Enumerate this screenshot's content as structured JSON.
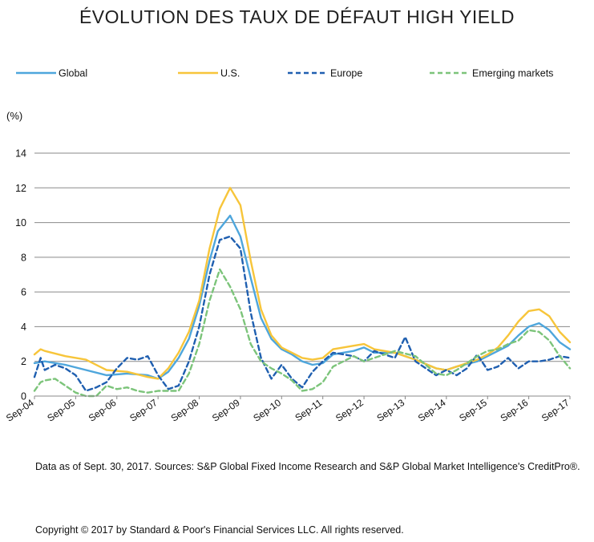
{
  "title": "ÉVOLUTION DES TAUX DE DÉFAUT HIGH YIELD",
  "footnote": "Data as of Sept. 30, 2017. Sources: S&P Global Fixed Income Research and S&P Global Market Intelligence's CreditPro®.",
  "copyright": "Copyright © 2017 by Standard & Poor's Financial Services LLC. All rights reserved.",
  "chart_data": {
    "type": "line",
    "ylabel": "(%)",
    "ylim": [
      0,
      14
    ],
    "yticks": [
      0,
      2,
      4,
      6,
      8,
      10,
      12,
      14
    ],
    "xticks": [
      "Sep-04",
      "Sep-05",
      "Sep-06",
      "Sep-07",
      "Sep-08",
      "Sep-09",
      "Sep-10",
      "Sep-11",
      "Sep-12",
      "Sep-13",
      "Sep-14",
      "Sep-15",
      "Sep-16",
      "Sep-17"
    ],
    "xlim": [
      2004.75,
      2017.75
    ],
    "grid": "horizontal",
    "legend_position": "top",
    "series": [
      {
        "name": "Global",
        "color": "#4ea6dc",
        "dash": "solid",
        "points": [
          [
            2004.75,
            1.9
          ],
          [
            2005.0,
            2.0
          ],
          [
            2005.5,
            1.8
          ],
          [
            2006.0,
            1.5
          ],
          [
            2006.5,
            1.2
          ],
          [
            2007.0,
            1.3
          ],
          [
            2007.5,
            1.2
          ],
          [
            2007.75,
            1.0
          ],
          [
            2008.0,
            1.4
          ],
          [
            2008.25,
            2.2
          ],
          [
            2008.5,
            3.3
          ],
          [
            2008.75,
            5.2
          ],
          [
            2009.0,
            7.8
          ],
          [
            2009.2,
            9.5
          ],
          [
            2009.5,
            10.4
          ],
          [
            2009.75,
            9.2
          ],
          [
            2010.0,
            6.8
          ],
          [
            2010.25,
            4.5
          ],
          [
            2010.5,
            3.3
          ],
          [
            2010.75,
            2.7
          ],
          [
            2011.0,
            2.4
          ],
          [
            2011.25,
            2.0
          ],
          [
            2011.5,
            1.8
          ],
          [
            2011.75,
            1.9
          ],
          [
            2012.0,
            2.4
          ],
          [
            2012.5,
            2.6
          ],
          [
            2012.75,
            2.8
          ],
          [
            2013.0,
            2.5
          ],
          [
            2013.5,
            2.5
          ],
          [
            2014.0,
            2.1
          ],
          [
            2014.5,
            1.6
          ],
          [
            2014.75,
            1.5
          ],
          [
            2015.0,
            1.7
          ],
          [
            2015.5,
            2.0
          ],
          [
            2015.75,
            2.3
          ],
          [
            2016.0,
            2.6
          ],
          [
            2016.25,
            2.9
          ],
          [
            2016.5,
            3.5
          ],
          [
            2016.75,
            4.0
          ],
          [
            2017.0,
            4.2
          ],
          [
            2017.25,
            3.8
          ],
          [
            2017.5,
            3.1
          ],
          [
            2017.75,
            2.7
          ]
        ]
      },
      {
        "name": "U.S.",
        "color": "#f7c53a",
        "dash": "solid",
        "points": [
          [
            2004.75,
            2.4
          ],
          [
            2004.9,
            2.7
          ],
          [
            2005.0,
            2.6
          ],
          [
            2005.5,
            2.3
          ],
          [
            2006.0,
            2.1
          ],
          [
            2006.5,
            1.5
          ],
          [
            2007.0,
            1.4
          ],
          [
            2007.5,
            1.1
          ],
          [
            2007.75,
            1.0
          ],
          [
            2008.0,
            1.6
          ],
          [
            2008.25,
            2.5
          ],
          [
            2008.5,
            3.7
          ],
          [
            2008.75,
            5.5
          ],
          [
            2009.0,
            8.5
          ],
          [
            2009.25,
            10.8
          ],
          [
            2009.5,
            12.0
          ],
          [
            2009.75,
            11.0
          ],
          [
            2010.0,
            7.8
          ],
          [
            2010.25,
            5.0
          ],
          [
            2010.5,
            3.5
          ],
          [
            2010.75,
            2.8
          ],
          [
            2011.0,
            2.5
          ],
          [
            2011.25,
            2.2
          ],
          [
            2011.5,
            2.1
          ],
          [
            2011.75,
            2.2
          ],
          [
            2012.0,
            2.7
          ],
          [
            2012.5,
            2.9
          ],
          [
            2012.75,
            3.0
          ],
          [
            2013.0,
            2.7
          ],
          [
            2013.5,
            2.5
          ],
          [
            2014.0,
            2.1
          ],
          [
            2014.5,
            1.6
          ],
          [
            2014.75,
            1.5
          ],
          [
            2015.0,
            1.7
          ],
          [
            2015.5,
            2.1
          ],
          [
            2015.75,
            2.4
          ],
          [
            2016.0,
            2.8
          ],
          [
            2016.25,
            3.5
          ],
          [
            2016.5,
            4.3
          ],
          [
            2016.75,
            4.9
          ],
          [
            2017.0,
            5.0
          ],
          [
            2017.25,
            4.6
          ],
          [
            2017.5,
            3.7
          ],
          [
            2017.75,
            3.1
          ]
        ]
      },
      {
        "name": "Europe",
        "color": "#1f5fb0",
        "dash": "dashed",
        "points": [
          [
            2004.75,
            1.1
          ],
          [
            2004.9,
            2.2
          ],
          [
            2005.0,
            1.5
          ],
          [
            2005.25,
            1.8
          ],
          [
            2005.5,
            1.6
          ],
          [
            2005.75,
            1.2
          ],
          [
            2006.0,
            0.3
          ],
          [
            2006.25,
            0.5
          ],
          [
            2006.5,
            0.8
          ],
          [
            2006.75,
            1.6
          ],
          [
            2007.0,
            2.2
          ],
          [
            2007.25,
            2.1
          ],
          [
            2007.5,
            2.3
          ],
          [
            2007.75,
            1.2
          ],
          [
            2008.0,
            0.4
          ],
          [
            2008.25,
            0.6
          ],
          [
            2008.5,
            2.0
          ],
          [
            2008.75,
            4.0
          ],
          [
            2009.0,
            7.0
          ],
          [
            2009.25,
            9.0
          ],
          [
            2009.5,
            9.2
          ],
          [
            2009.75,
            8.5
          ],
          [
            2010.0,
            4.8
          ],
          [
            2010.25,
            2.2
          ],
          [
            2010.5,
            1.0
          ],
          [
            2010.75,
            1.8
          ],
          [
            2011.0,
            1.0
          ],
          [
            2011.25,
            0.5
          ],
          [
            2011.5,
            1.4
          ],
          [
            2011.75,
            2.0
          ],
          [
            2012.0,
            2.5
          ],
          [
            2012.5,
            2.3
          ],
          [
            2012.75,
            2.0
          ],
          [
            2013.0,
            2.6
          ],
          [
            2013.5,
            2.2
          ],
          [
            2013.75,
            3.4
          ],
          [
            2014.0,
            2.0
          ],
          [
            2014.5,
            1.2
          ],
          [
            2014.75,
            1.5
          ],
          [
            2015.0,
            1.2
          ],
          [
            2015.25,
            1.6
          ],
          [
            2015.5,
            2.4
          ],
          [
            2015.75,
            1.5
          ],
          [
            2016.0,
            1.7
          ],
          [
            2016.25,
            2.2
          ],
          [
            2016.5,
            1.6
          ],
          [
            2016.75,
            2.0
          ],
          [
            2017.0,
            2.0
          ],
          [
            2017.25,
            2.1
          ],
          [
            2017.5,
            2.3
          ],
          [
            2017.75,
            2.2
          ]
        ]
      },
      {
        "name": "Emerging markets",
        "color": "#7cc47a",
        "dash": "dashed",
        "points": [
          [
            2004.75,
            0.3
          ],
          [
            2004.9,
            0.8
          ],
          [
            2005.0,
            0.9
          ],
          [
            2005.25,
            1.0
          ],
          [
            2005.5,
            0.6
          ],
          [
            2005.75,
            0.2
          ],
          [
            2006.0,
            0.0
          ],
          [
            2006.25,
            0.0
          ],
          [
            2006.5,
            0.6
          ],
          [
            2006.75,
            0.4
          ],
          [
            2007.0,
            0.5
          ],
          [
            2007.25,
            0.3
          ],
          [
            2007.5,
            0.2
          ],
          [
            2007.75,
            0.3
          ],
          [
            2008.0,
            0.3
          ],
          [
            2008.25,
            0.3
          ],
          [
            2008.5,
            1.3
          ],
          [
            2008.75,
            3.0
          ],
          [
            2009.0,
            5.5
          ],
          [
            2009.25,
            7.3
          ],
          [
            2009.5,
            6.3
          ],
          [
            2009.75,
            5.0
          ],
          [
            2010.0,
            3.0
          ],
          [
            2010.25,
            2.0
          ],
          [
            2010.5,
            1.6
          ],
          [
            2010.75,
            1.3
          ],
          [
            2011.0,
            0.9
          ],
          [
            2011.25,
            0.3
          ],
          [
            2011.5,
            0.4
          ],
          [
            2011.75,
            0.8
          ],
          [
            2012.0,
            1.7
          ],
          [
            2012.5,
            2.3
          ],
          [
            2012.75,
            2.0
          ],
          [
            2013.0,
            2.2
          ],
          [
            2013.5,
            2.6
          ],
          [
            2014.0,
            2.3
          ],
          [
            2014.5,
            1.3
          ],
          [
            2014.75,
            1.2
          ],
          [
            2015.0,
            1.5
          ],
          [
            2015.5,
            2.3
          ],
          [
            2015.75,
            2.6
          ],
          [
            2016.0,
            2.7
          ],
          [
            2016.25,
            3.0
          ],
          [
            2016.5,
            3.2
          ],
          [
            2016.75,
            3.8
          ],
          [
            2017.0,
            3.7
          ],
          [
            2017.25,
            3.2
          ],
          [
            2017.5,
            2.3
          ],
          [
            2017.75,
            1.6
          ]
        ]
      }
    ]
  }
}
